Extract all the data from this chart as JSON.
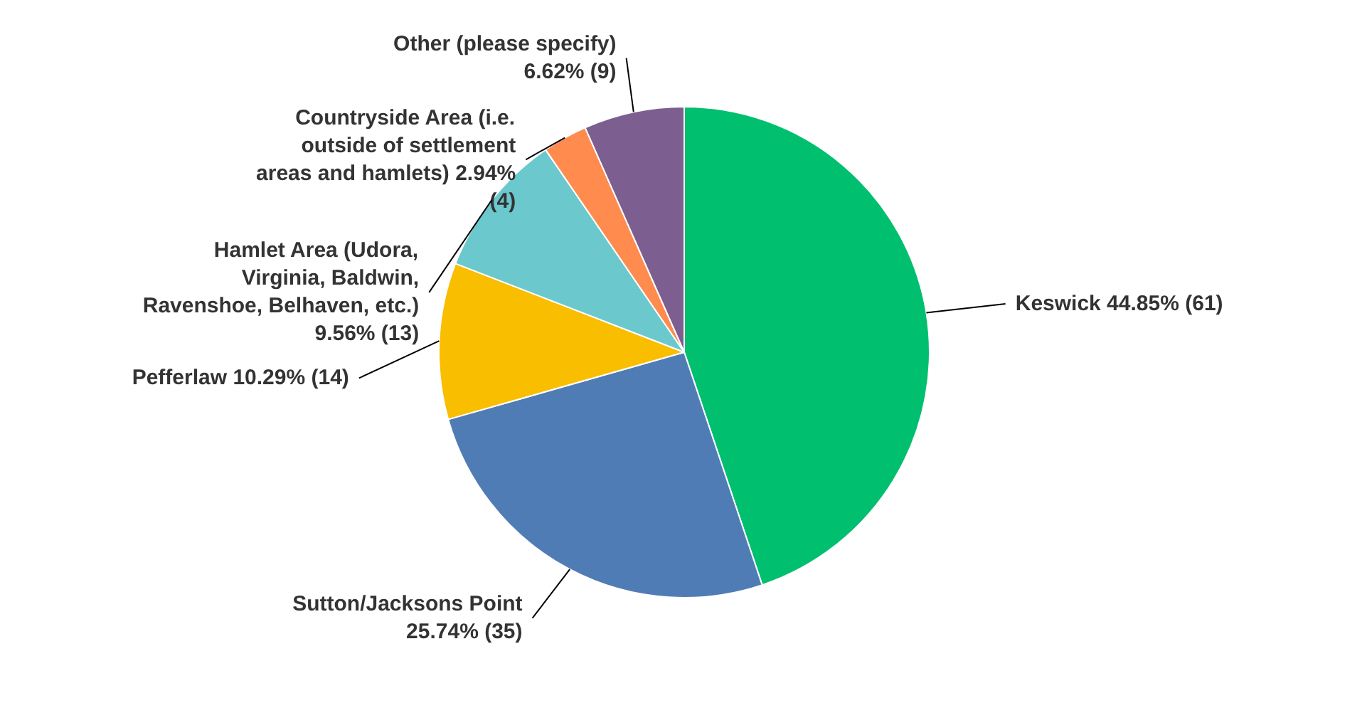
{
  "chart_data": {
    "type": "pie",
    "categories": [
      "Keswick",
      "Sutton/Jacksons Point",
      "Pefferlaw",
      "Hamlet Area (Udora, Virginia, Baldwin, Ravenshoe, Belhaven, etc.)",
      "Countryside Area (i.e. outside of settlement areas and hamlets)",
      "Other (please specify)"
    ],
    "values": [
      61,
      35,
      14,
      13,
      4,
      9
    ],
    "value_labels": [
      "44.85% (61)",
      "25.74% (35)",
      "10.29% (14)",
      "9.56% (13)",
      "2.94% (4)",
      "6.62% (9)"
    ],
    "colors": [
      "#00bf6f",
      "#507cb6",
      "#f9be00",
      "#6bc8cd",
      "#ff8b4f",
      "#7d5e90"
    ]
  }
}
